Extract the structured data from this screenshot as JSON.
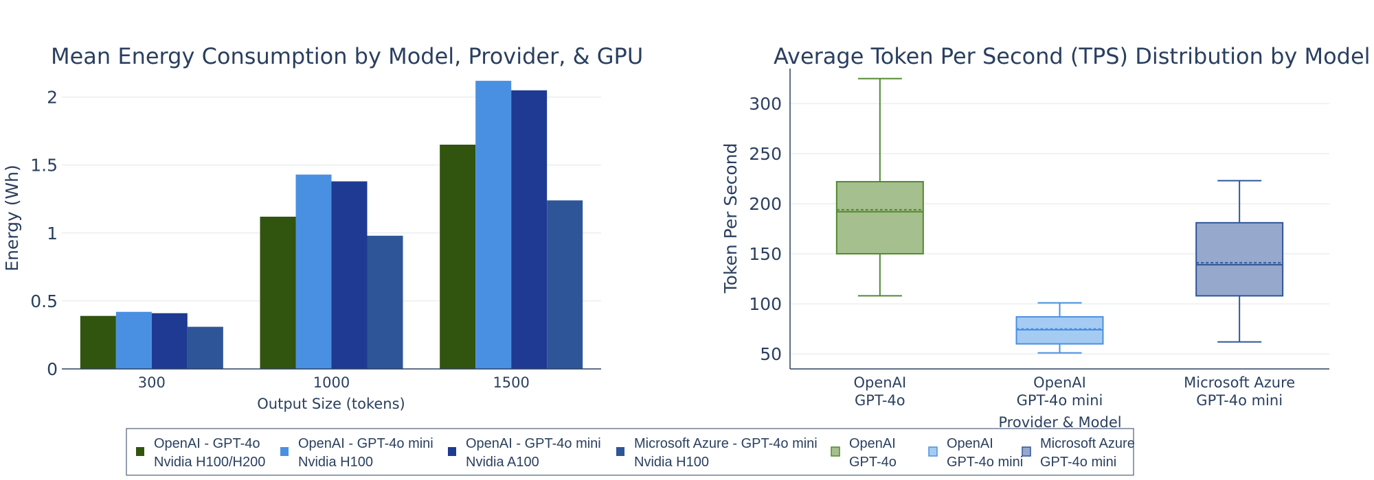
{
  "chart_data": [
    {
      "type": "bar",
      "title": "Mean Energy Consumption by Model, Provider, & GPU",
      "xlabel": "Output Size (tokens)",
      "ylabel": "Energy (Wh)",
      "categories": [
        "300",
        "1000",
        "1500"
      ],
      "ylim": [
        0,
        2.22
      ],
      "yticks": [
        0,
        0.5,
        1,
        1.5,
        2
      ],
      "ytick_labels": [
        "0",
        "0.5",
        "1",
        "1.5",
        "2"
      ],
      "grid": true,
      "series": [
        {
          "name": "OpenAI - GPT-4o Nvidia H100/H200",
          "color": "#31540f",
          "values": [
            0.39,
            1.12,
            1.65
          ]
        },
        {
          "name": "OpenAI - GPT-4o mini Nvidia H100",
          "color": "#4a90e2",
          "values": [
            0.42,
            1.43,
            2.12
          ]
        },
        {
          "name": "OpenAI - GPT-4o mini Nvidia A100",
          "color": "#1f3a93",
          "values": [
            0.41,
            1.38,
            2.05
          ]
        },
        {
          "name": "Microsoft Azure - GPT-4o mini Nvidia H100",
          "color": "#2e5597",
          "values": [
            0.31,
            0.98,
            1.24
          ]
        }
      ]
    },
    {
      "type": "box",
      "title": "Average Token Per Second (TPS) Distribution by Model",
      "xlabel": "Provider & Model",
      "ylabel": "Token Per Second",
      "ylim": [
        35,
        335
      ],
      "yticks": [
        50,
        100,
        150,
        200,
        250,
        300
      ],
      "ytick_labels": [
        "50",
        "100",
        "150",
        "200",
        "250",
        "300"
      ],
      "grid": true,
      "boxes": [
        {
          "label_line1": "OpenAI",
          "label_line2": "GPT-4o",
          "color": "#4f8a2e",
          "fill": "#a6bf8e",
          "min": 108,
          "q1": 150,
          "median": 192,
          "mean": 194,
          "q3": 222,
          "max": 325
        },
        {
          "label_line1": "OpenAI",
          "label_line2": "GPT-4o mini",
          "color": "#4a90e2",
          "fill": "#a6cbf3",
          "min": 51,
          "q1": 60,
          "median": 74,
          "mean": 75,
          "q3": 87,
          "max": 101
        },
        {
          "label_line1": "Microsoft Azure",
          "label_line2": "GPT-4o mini",
          "color": "#2e5597",
          "fill": "#97a8cd",
          "min": 62,
          "q1": 108,
          "median": 139,
          "mean": 141,
          "q3": 181,
          "max": 223
        }
      ]
    }
  ],
  "legend": {
    "items": [
      {
        "line1": "OpenAI - GPT-4o",
        "line2": "Nvidia H100/H200",
        "color": "#31540f",
        "style": "solid"
      },
      {
        "line1": "OpenAI - GPT-4o mini",
        "line2": "Nvidia H100",
        "color": "#4a90e2",
        "style": "solid"
      },
      {
        "line1": "OpenAI - GPT-4o mini",
        "line2": "Nvidia A100",
        "color": "#1f3a93",
        "style": "solid"
      },
      {
        "line1": "Microsoft Azure - GPT-4o mini",
        "line2": "Nvidia H100",
        "color": "#2e5597",
        "style": "solid"
      },
      {
        "line1": "OpenAI",
        "line2": "GPT-4o",
        "color": "#4f8a2e",
        "fill": "#a6bf8e",
        "style": "box"
      },
      {
        "line1": "OpenAI",
        "line2": "GPT-4o mini",
        "color": "#4a90e2",
        "fill": "#a6cbf3",
        "style": "box"
      },
      {
        "line1": "Microsoft Azure",
        "line2": "GPT-4o mini",
        "color": "#2e5597",
        "fill": "#97a8cd",
        "style": "box"
      }
    ]
  }
}
